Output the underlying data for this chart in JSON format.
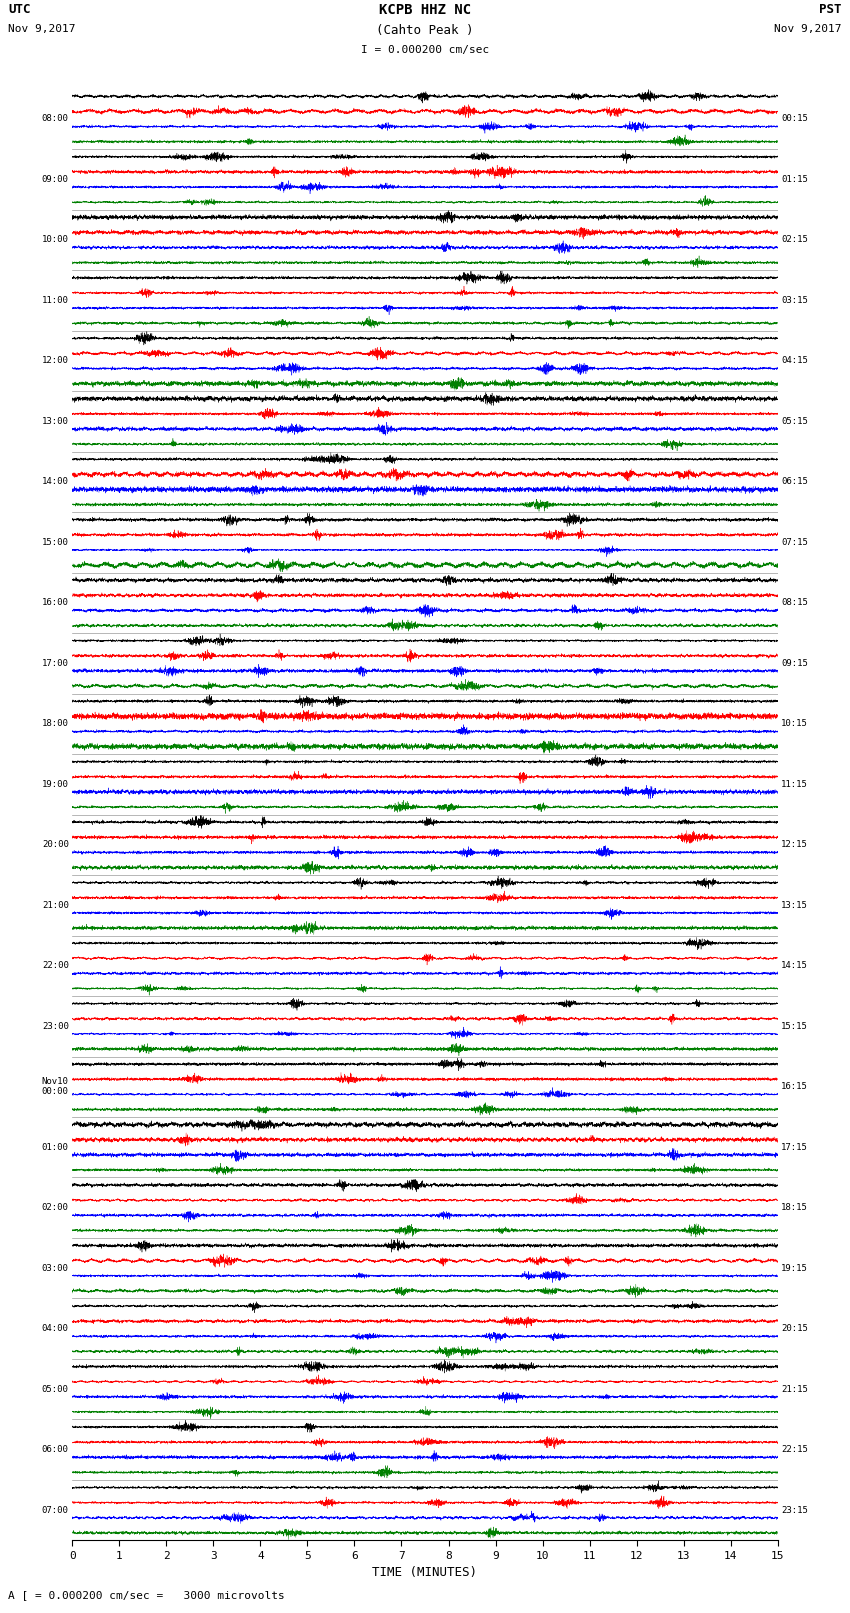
{
  "title_line1": "KCPB HHZ NC",
  "title_line2": "(Cahto Peak )",
  "scale_label": "I = 0.000200 cm/sec",
  "bottom_label": "A [ = 0.000200 cm/sec =   3000 microvolts",
  "xlabel": "TIME (MINUTES)",
  "utc_label": "UTC",
  "utc_date": "Nov 9,2017",
  "pst_label": "PST",
  "pst_date": "Nov 9,2017",
  "left_times": [
    "08:00",
    "09:00",
    "10:00",
    "11:00",
    "12:00",
    "13:00",
    "14:00",
    "15:00",
    "16:00",
    "17:00",
    "18:00",
    "19:00",
    "20:00",
    "21:00",
    "22:00",
    "23:00",
    "Nov10\n00:00",
    "01:00",
    "02:00",
    "03:00",
    "04:00",
    "05:00",
    "06:00",
    "07:00"
  ],
  "right_times": [
    "00:15",
    "01:15",
    "02:15",
    "03:15",
    "04:15",
    "05:15",
    "06:15",
    "07:15",
    "08:15",
    "09:15",
    "10:15",
    "11:15",
    "12:15",
    "13:15",
    "14:15",
    "15:15",
    "16:15",
    "17:15",
    "18:15",
    "19:15",
    "20:15",
    "21:15",
    "22:15",
    "23:15"
  ],
  "num_rows": 24,
  "minutes_per_row": 15,
  "x_ticks": [
    0,
    1,
    2,
    3,
    4,
    5,
    6,
    7,
    8,
    9,
    10,
    11,
    12,
    13,
    14,
    15
  ],
  "bg_color": "white",
  "trace_colors": [
    "black",
    "red",
    "blue",
    "green"
  ],
  "sub_traces_per_row": 4,
  "samples_per_row": 6000,
  "trace_amplitude": 0.45,
  "linewidth": 0.3
}
